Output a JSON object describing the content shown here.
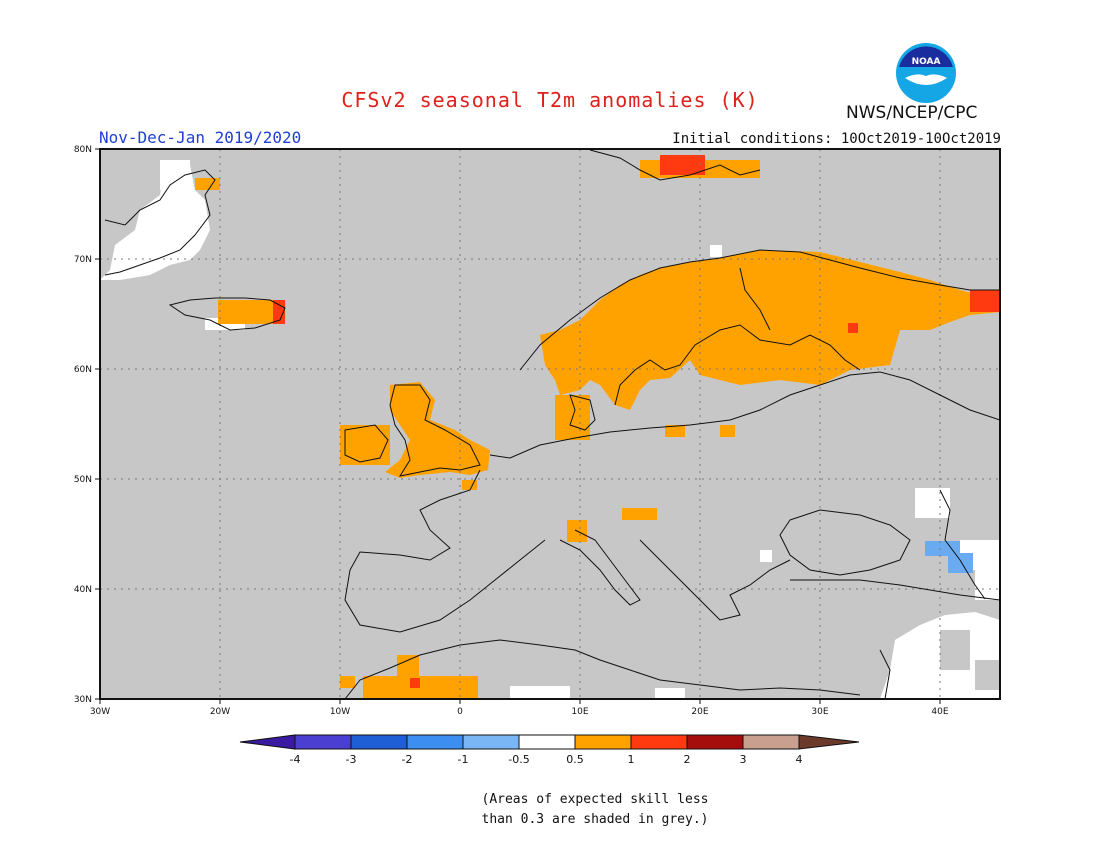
{
  "title": "CFSv2 seasonal T2m anomalies (K)",
  "period": "Nov-Dec-Jan 2019/2020",
  "initial_conditions": "Initial conditions: 10Oct2019-10Oct2019",
  "agency": "NWS/NCEP/CPC",
  "logo_text": "NOAA",
  "logo_icon": "noaa-logo-icon",
  "lat_ticks": [
    "80N",
    "70N",
    "60N",
    "50N",
    "40N",
    "30N"
  ],
  "lon_ticks": [
    "30W",
    "20W",
    "10W",
    "0",
    "10E",
    "20E",
    "30E",
    "40E"
  ],
  "colorbar": {
    "labels": [
      "-4",
      "-3",
      "-2",
      "-1",
      "-0.5",
      "0.5",
      "1",
      "2",
      "3",
      "4"
    ],
    "colors": [
      "#3a1aa0",
      "#4a3fd0",
      "#1f5fd6",
      "#3c8ef0",
      "#7ab6f5",
      "#ffffff",
      "#ffa200",
      "#ff3a10",
      "#a50d0d",
      "#c9a090",
      "#6b3a2a"
    ]
  },
  "note_line1": "(Areas of expected skill less",
  "note_line2": "than 0.3 are shaded in grey.)",
  "colors": {
    "grey": "#c7c7c7",
    "orange": "#ffa200",
    "red": "#ff3a10",
    "lightblue": "#6aaaf0"
  }
}
